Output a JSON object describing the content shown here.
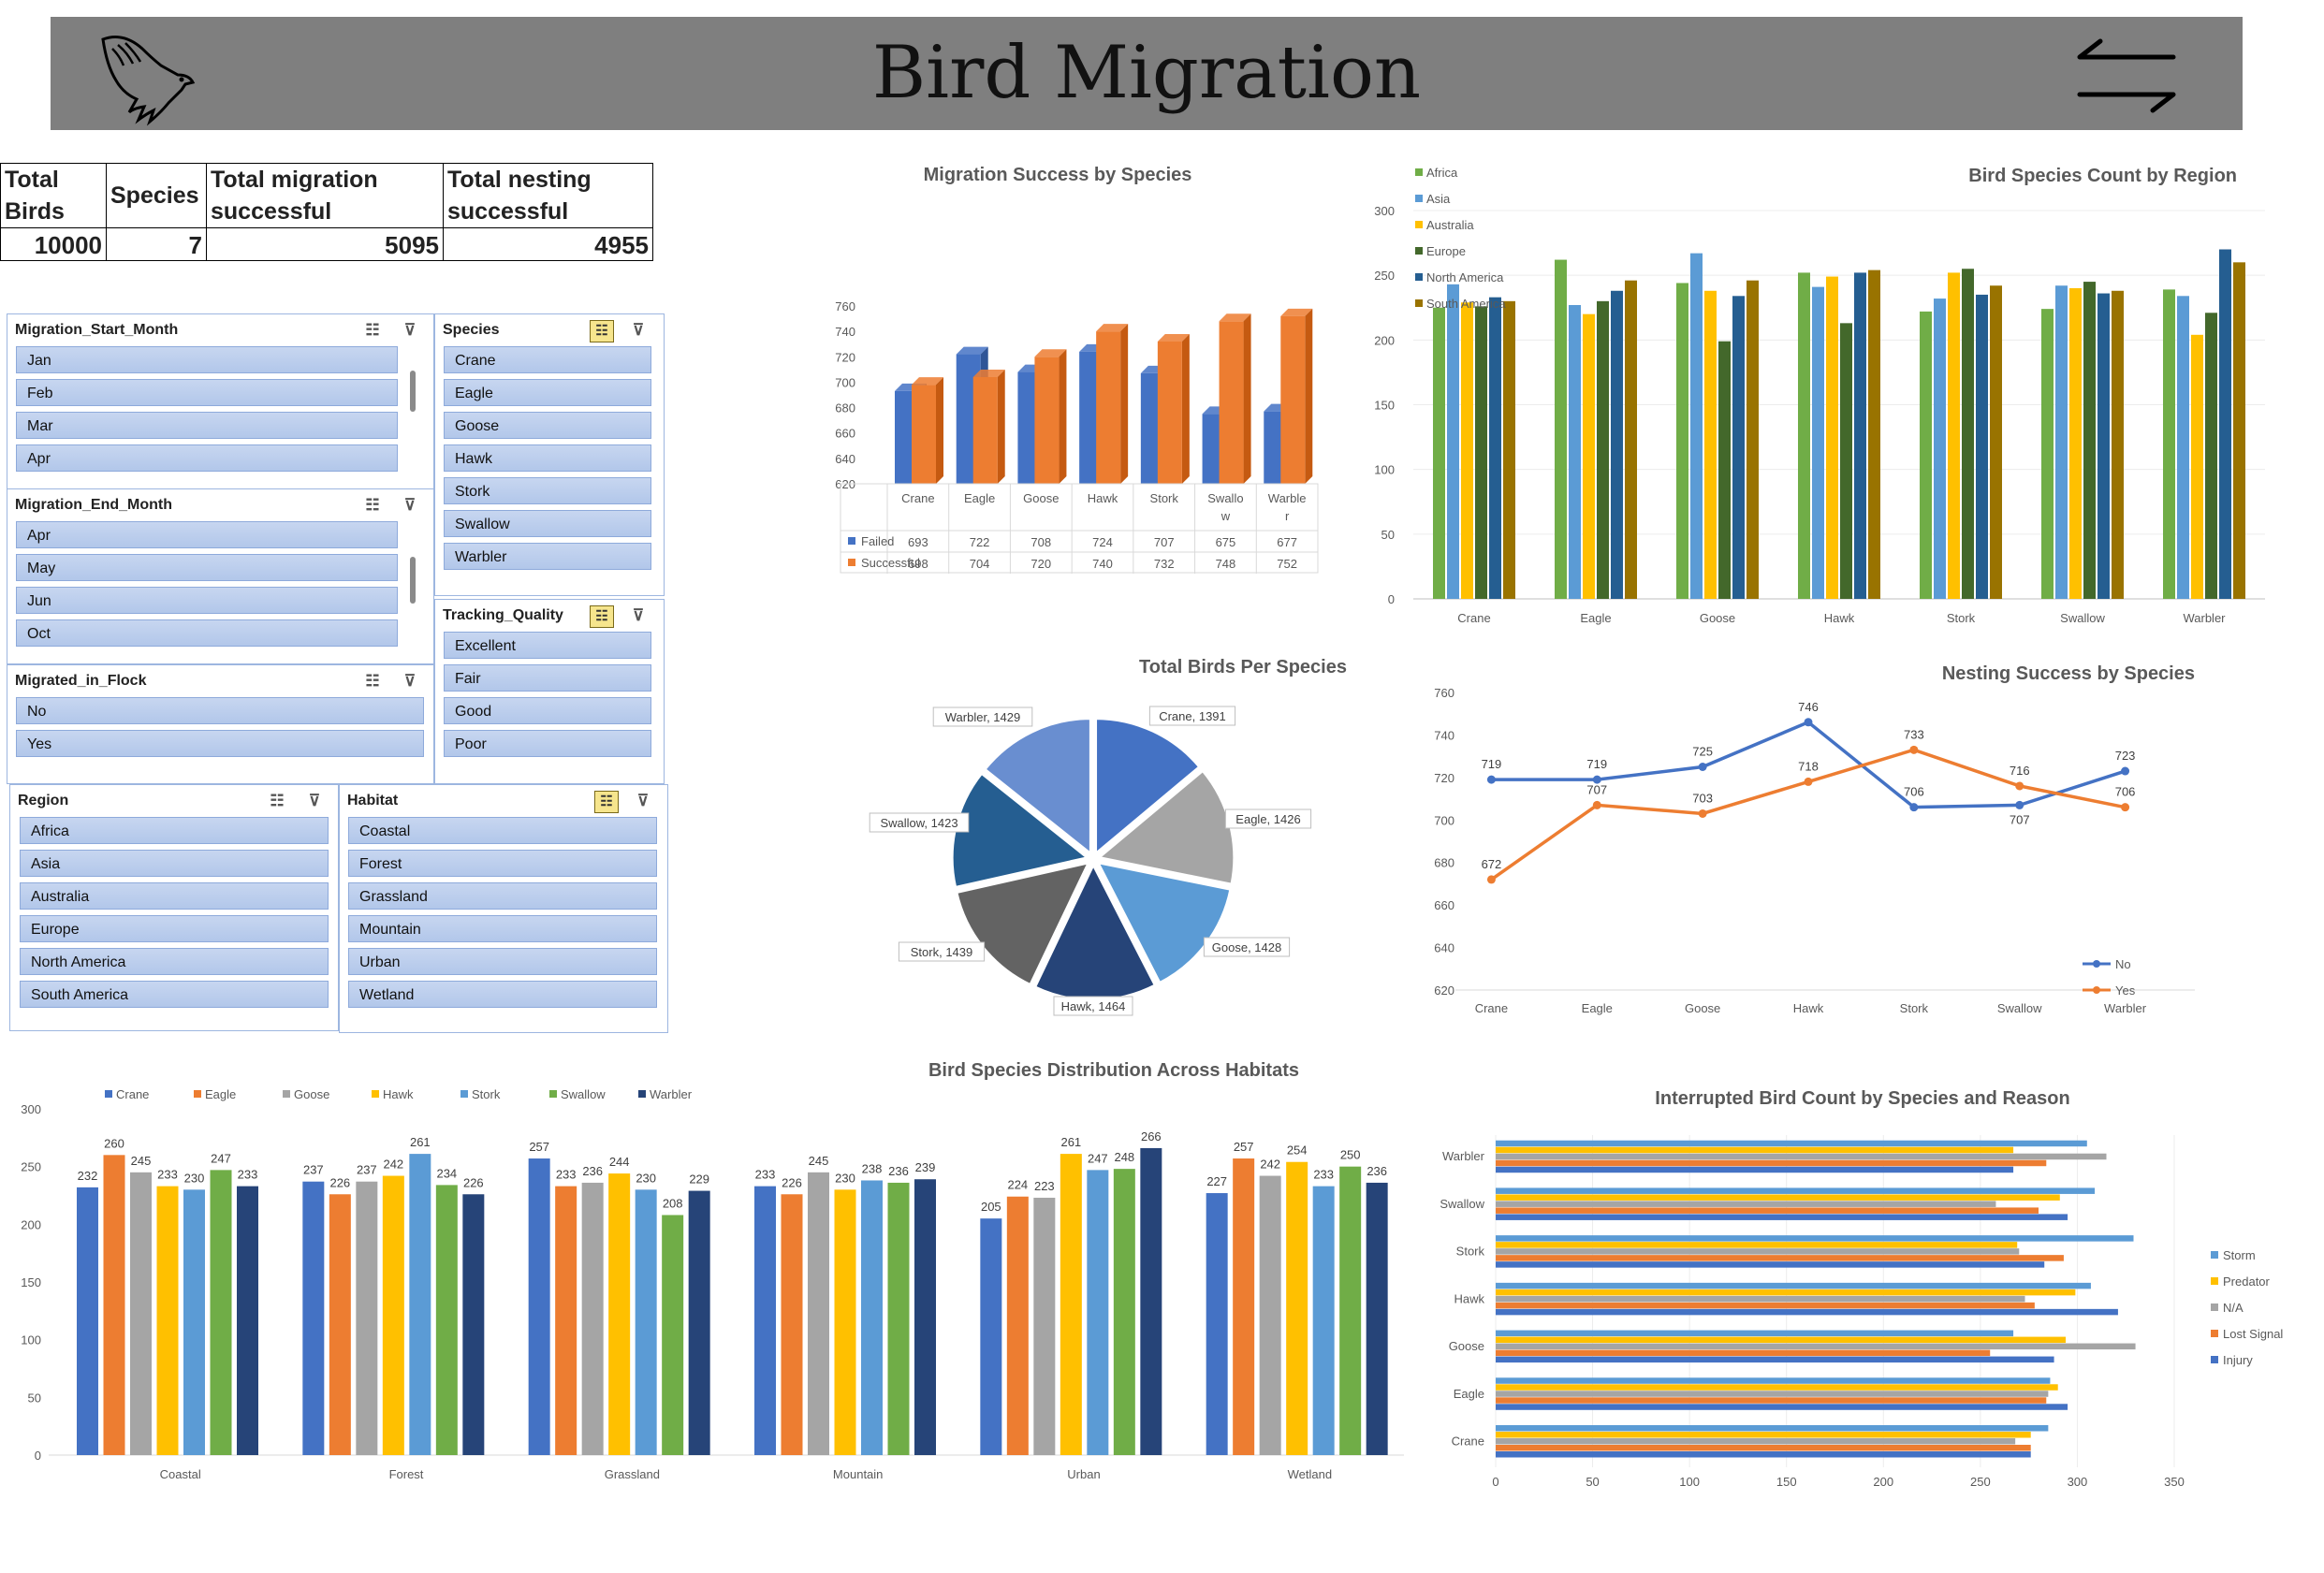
{
  "header": {
    "title": "Bird Migration"
  },
  "kpis": {
    "labels": {
      "total_birds": "Total Birds",
      "species": "Species",
      "migration_success": "Total migration successful",
      "nesting_success": "Total nesting successful"
    },
    "values": {
      "total_birds": "10000",
      "species": "7",
      "migration_success": "5095",
      "nesting_success": "4955"
    }
  },
  "slicers": {
    "start_month": {
      "title": "Migration_Start_Month",
      "items": [
        "Jan",
        "Feb",
        "Mar",
        "Apr"
      ]
    },
    "end_month": {
      "title": "Migration_End_Month",
      "items": [
        "Apr",
        "May",
        "Jun",
        "Oct"
      ]
    },
    "in_flock": {
      "title": "Migrated_in_Flock",
      "items": [
        "No",
        "Yes"
      ]
    },
    "species": {
      "title": "Species",
      "items": [
        "Crane",
        "Eagle",
        "Goose",
        "Hawk",
        "Stork",
        "Swallow",
        "Warbler"
      ]
    },
    "tracking": {
      "title": "Tracking_Quality",
      "items": [
        "Excellent",
        "Fair",
        "Good",
        "Poor"
      ]
    },
    "region": {
      "title": "Region",
      "items": [
        "Africa",
        "Asia",
        "Australia",
        "Europe",
        "North America",
        "South America"
      ]
    },
    "habitat": {
      "title": "Habitat",
      "items": [
        "Coastal",
        "Forest",
        "Grassland",
        "Mountain",
        "Urban",
        "Wetland"
      ]
    }
  },
  "colors": {
    "blue": "#4472c4",
    "orange": "#ed7d31",
    "gray": "#a5a5a5",
    "yellow": "#ffc000",
    "lightblue": "#5b9bd5",
    "green": "#70ad47",
    "navy": "#264478",
    "darkgreen": "#43682b",
    "mid": "#255e91",
    "olive": "#997300"
  },
  "chart_data": [
    {
      "id": "migration_success",
      "type": "bar",
      "title": "Migration Success by Species",
      "categories": [
        "Crane",
        "Eagle",
        "Goose",
        "Hawk",
        "Stork",
        "Swallow",
        "Warbler"
      ],
      "category_labels": [
        [
          "Crane"
        ],
        [
          "Eagle"
        ],
        [
          "Goose"
        ],
        [
          "Hawk"
        ],
        [
          "Stork"
        ],
        [
          "Swallo",
          "w"
        ],
        [
          "Warble",
          "r"
        ]
      ],
      "series": [
        {
          "name": "Failed",
          "values": [
            693,
            722,
            708,
            724,
            707,
            675,
            677
          ]
        },
        {
          "name": "Successful",
          "values": [
            698,
            704,
            720,
            740,
            732,
            748,
            752
          ]
        }
      ],
      "ylim": [
        620,
        760
      ],
      "yticks": [
        620,
        640,
        660,
        680,
        700,
        720,
        740,
        760
      ],
      "data_table": true
    },
    {
      "id": "species_by_region",
      "type": "bar",
      "title": "Bird Species Count by Region",
      "categories": [
        "Crane",
        "Eagle",
        "Goose",
        "Hawk",
        "Stork",
        "Swallow",
        "Warbler"
      ],
      "series": [
        {
          "name": "Africa",
          "values": [
            225,
            262,
            244,
            252,
            222,
            224,
            239
          ]
        },
        {
          "name": "Asia",
          "values": [
            243,
            227,
            267,
            241,
            232,
            242,
            234
          ]
        },
        {
          "name": "Australia",
          "values": [
            229,
            220,
            238,
            249,
            252,
            240,
            204
          ]
        },
        {
          "name": "Europe",
          "values": [
            226,
            230,
            199,
            213,
            255,
            245,
            221
          ]
        },
        {
          "name": "North America",
          "values": [
            233,
            238,
            234,
            252,
            235,
            236,
            270
          ]
        },
        {
          "name": "South America",
          "values": [
            230,
            246,
            246,
            254,
            242,
            238,
            260
          ]
        }
      ],
      "ylim": [
        0,
        300
      ],
      "yticks": [
        0,
        50,
        100,
        150,
        200,
        250,
        300
      ],
      "legend": "top-left"
    },
    {
      "id": "birds_per_species",
      "type": "pie",
      "title": "Total Birds Per Species",
      "slices": [
        {
          "label": "Crane, 1391",
          "value": 1391
        },
        {
          "label": "Eagle, 1426",
          "value": 1426
        },
        {
          "label": "Goose, 1428",
          "value": 1428
        },
        {
          "label": "Hawk, 1464",
          "value": 1464
        },
        {
          "label": "Stork, 1439",
          "value": 1439
        },
        {
          "label": "Swallow, 1423",
          "value": 1423
        },
        {
          "label": "Warbler, 1429",
          "value": 1429
        }
      ]
    },
    {
      "id": "nesting_success",
      "type": "line",
      "title": "Nesting Success by Species",
      "categories": [
        "Crane",
        "Eagle",
        "Goose",
        "Hawk",
        "Stork",
        "Swallow",
        "Warbler"
      ],
      "series": [
        {
          "name": "No",
          "values": [
            719,
            719,
            725,
            746,
            706,
            707,
            723
          ]
        },
        {
          "name": "Yes",
          "values": [
            672,
            707,
            703,
            718,
            733,
            716,
            706
          ]
        }
      ],
      "point_labels": [
        [
          "719",
          "719",
          "725",
          "746",
          "706",
          "",
          "723"
        ],
        [
          "672",
          "707",
          "703",
          "718",
          "733",
          "716",
          "706"
        ]
      ],
      "extra_label": "707",
      "ylim": [
        620,
        760
      ],
      "yticks": [
        620,
        640,
        660,
        680,
        700,
        720,
        740,
        760
      ],
      "legend": "bottom-right"
    },
    {
      "id": "habitat_distribution",
      "type": "bar",
      "title": "Bird Species Distribution Across Habitats",
      "categories": [
        "Coastal",
        "Forest",
        "Grassland",
        "Mountain",
        "Urban",
        "Wetland"
      ],
      "series": [
        {
          "name": "Crane",
          "values": [
            232,
            237,
            257,
            233,
            205,
            227
          ]
        },
        {
          "name": "Eagle",
          "values": [
            260,
            226,
            233,
            226,
            224,
            257
          ]
        },
        {
          "name": "Goose",
          "values": [
            245,
            237,
            236,
            245,
            223,
            242
          ]
        },
        {
          "name": "Hawk",
          "values": [
            233,
            242,
            244,
            230,
            261,
            254
          ]
        },
        {
          "name": "Stork",
          "values": [
            230,
            261,
            230,
            238,
            247,
            233
          ]
        },
        {
          "name": "Swallow",
          "values": [
            247,
            234,
            208,
            236,
            248,
            250
          ]
        },
        {
          "name": "Warbler",
          "values": [
            233,
            226,
            229,
            239,
            266,
            236
          ]
        }
      ],
      "ylim": [
        0,
        300
      ],
      "yticks": [
        0,
        50,
        100,
        150,
        200,
        250,
        300
      ],
      "legend": "top"
    },
    {
      "id": "interrupted_count",
      "type": "bar",
      "orientation": "horizontal",
      "title": "Interrupted Bird Count by Species and Reason",
      "categories": [
        "Crane",
        "Eagle",
        "Goose",
        "Hawk",
        "Stork",
        "Swallow",
        "Warbler"
      ],
      "series": [
        {
          "name": "Injury",
          "values": [
            276,
            295,
            288,
            321,
            283,
            295,
            267
          ]
        },
        {
          "name": "Lost Signal",
          "values": [
            276,
            284,
            255,
            278,
            293,
            280,
            284
          ]
        },
        {
          "name": "N/A",
          "values": [
            268,
            285,
            330,
            273,
            270,
            258,
            315
          ]
        },
        {
          "name": "Predator",
          "values": [
            276,
            290,
            294,
            299,
            269,
            291,
            267
          ]
        },
        {
          "name": "Storm",
          "values": [
            285,
            286,
            267,
            307,
            329,
            309,
            305
          ]
        }
      ],
      "xlim": [
        0,
        350
      ],
      "xticks": [
        0,
        50,
        100,
        150,
        200,
        250,
        300,
        350
      ],
      "legend": "right"
    }
  ]
}
